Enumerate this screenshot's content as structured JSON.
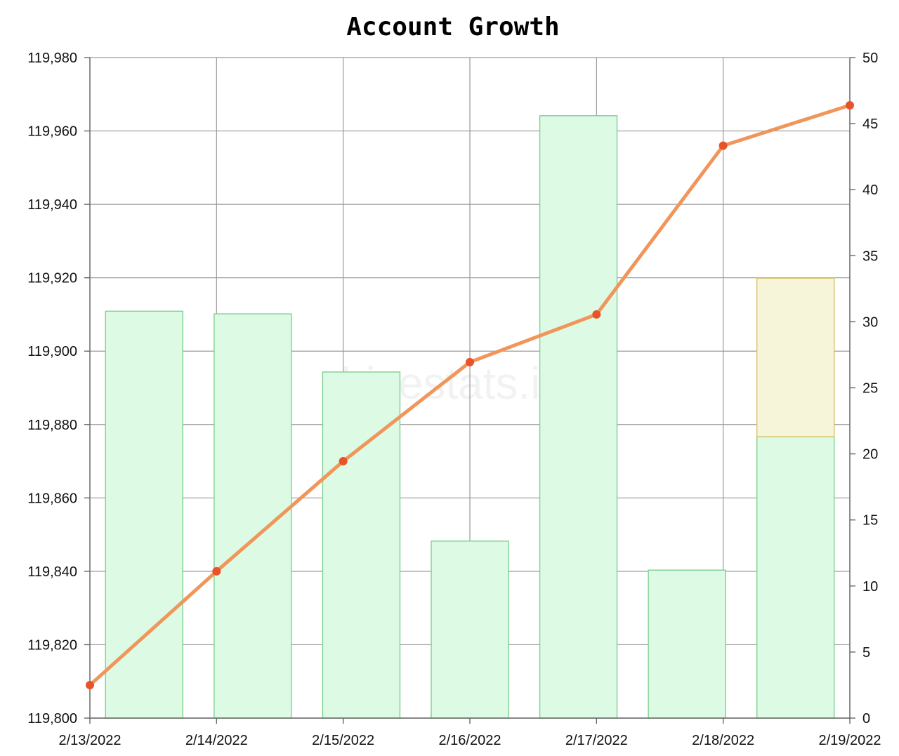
{
  "chart_data": {
    "type": "bar+line",
    "title": "Account Growth",
    "watermark": "hivestats.io",
    "x": [
      "2/13/2022",
      "2/14/2022",
      "2/15/2022",
      "2/16/2022",
      "2/17/2022",
      "2/18/2022",
      "2/19/2022"
    ],
    "left_axis": {
      "ylim": [
        119800,
        119980
      ],
      "ticks": [
        "119,800",
        "119,820",
        "119,840",
        "119,860",
        "119,880",
        "119,900",
        "119,920",
        "119,940",
        "119,960",
        "119,980"
      ]
    },
    "right_axis": {
      "ylim": [
        0,
        50
      ],
      "ticks": [
        "0",
        "5",
        "10",
        "15",
        "20",
        "25",
        "30",
        "35",
        "40",
        "45",
        "50"
      ]
    },
    "series": [
      {
        "type": "line",
        "axis": "left",
        "values": [
          119809,
          119840,
          119870,
          119897,
          119910,
          119956,
          119967
        ],
        "color": "#f0965a",
        "marker_color": "#e8532a"
      },
      {
        "type": "bar",
        "axis": "right",
        "values": [
          30.8,
          30.6,
          26.2,
          13.4,
          45.6,
          11.2,
          21.3
        ],
        "color": "#dcfae4",
        "stroke": "#7fcf8f"
      },
      {
        "type": "bar",
        "axis": "right",
        "stacked": true,
        "values": [
          0,
          0,
          0,
          0,
          0,
          0,
          12.0
        ],
        "color": "#f7f5d9",
        "stroke": "#d6c46a"
      }
    ],
    "grid": true
  }
}
